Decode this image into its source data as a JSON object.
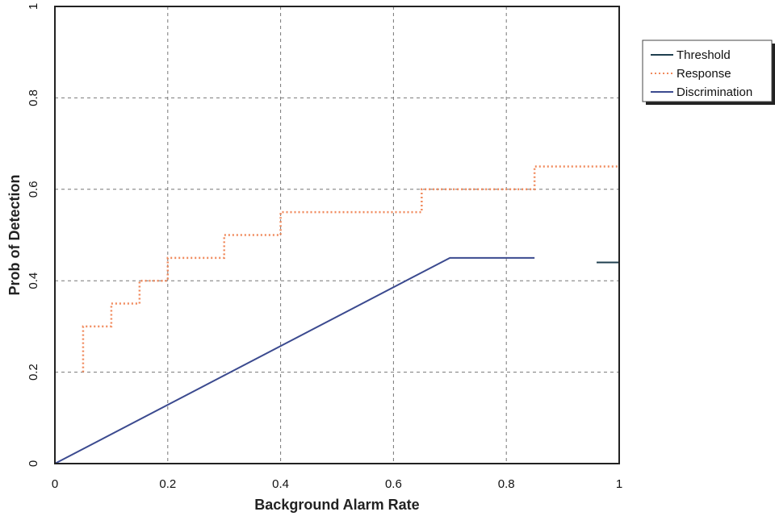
{
  "chart_data": {
    "type": "line",
    "title": "",
    "xlabel": "Background Alarm Rate",
    "ylabel": "Prob of Detection",
    "xlim": [
      0,
      1
    ],
    "ylim": [
      0,
      1
    ],
    "x_ticks": [
      0,
      0.2,
      0.4,
      0.6,
      0.8,
      1
    ],
    "x_tick_labels": [
      "0",
      "0.2",
      "0.4",
      "0.6",
      "0.8",
      "1"
    ],
    "y_ticks": [
      0,
      0.2,
      0.4,
      0.6,
      0.8,
      1
    ],
    "y_tick_labels": [
      "0",
      "0.2",
      "0.4",
      "0.6",
      "0.8",
      "1"
    ],
    "grid": true,
    "legend_position": "outside-right-top",
    "series": [
      {
        "name": "Threshold",
        "color": "#1f3f4f",
        "style": "solid",
        "x": [
          0.96,
          1.0
        ],
        "y": [
          0.44,
          0.44
        ]
      },
      {
        "name": "Response",
        "color": "#f08a5d",
        "style": "dotted",
        "x": [
          0.05,
          0.05,
          0.1,
          0.1,
          0.15,
          0.15,
          0.2,
          0.2,
          0.3,
          0.3,
          0.4,
          0.4,
          0.65,
          0.65,
          0.85,
          0.85,
          1.0
        ],
        "y": [
          0.2,
          0.3,
          0.3,
          0.35,
          0.35,
          0.4,
          0.4,
          0.45,
          0.45,
          0.5,
          0.5,
          0.55,
          0.55,
          0.6,
          0.6,
          0.65,
          0.65
        ]
      },
      {
        "name": "Discrimination",
        "color": "#3b4a8f",
        "style": "solid",
        "x": [
          0,
          0.7,
          0.85
        ],
        "y": [
          0,
          0.45,
          0.45
        ]
      }
    ]
  }
}
